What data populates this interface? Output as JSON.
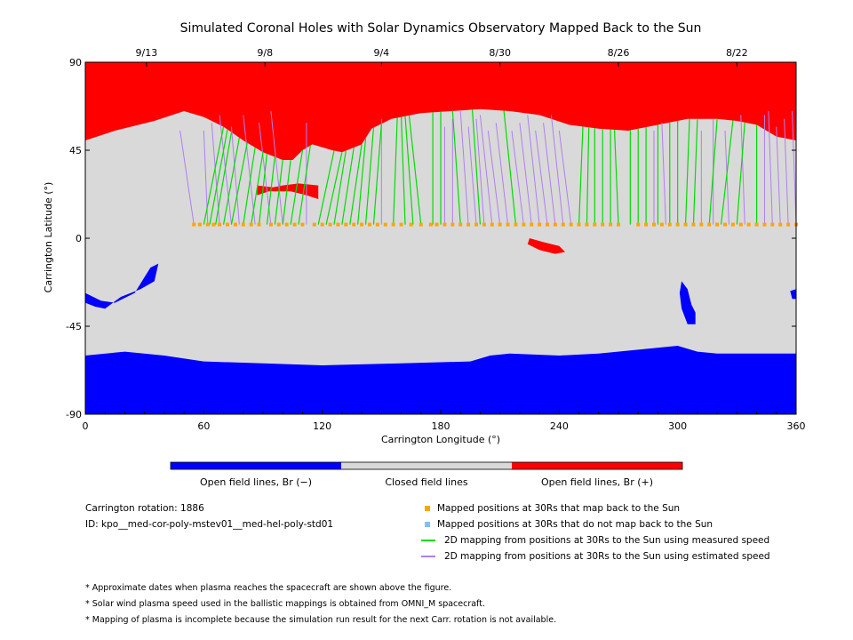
{
  "chart_data": {
    "type": "heatmap",
    "title": "Simulated Coronal Holes with Solar Dynamics Observatory Mapped Back to the Sun",
    "xlabel": "Carrington Longitude (°)",
    "ylabel": "Carrington Latitude (°)",
    "xlim": [
      0,
      360
    ],
    "ylim": [
      -90,
      90
    ],
    "x_ticks": [
      0,
      60,
      120,
      180,
      240,
      300,
      360
    ],
    "y_ticks": [
      90,
      45,
      0,
      -45,
      -90
    ],
    "top_axis_dates": [
      {
        "label": "9/13",
        "lon": 31
      },
      {
        "label": "9/8",
        "lon": 91
      },
      {
        "label": "9/4",
        "lon": 150
      },
      {
        "label": "8/30",
        "lon": 210
      },
      {
        "label": "8/26",
        "lon": 270
      },
      {
        "label": "8/22",
        "lon": 330
      }
    ],
    "colorbar": [
      {
        "label": "Open field lines, Br (−)",
        "color": "#0000ff"
      },
      {
        "label": "Closed field lines",
        "color": "#d9d9d9"
      },
      {
        "label": "Open field lines, Br (+)",
        "color": "#ff0000"
      }
    ],
    "north_boundary": [
      [
        0,
        50
      ],
      [
        15,
        55
      ],
      [
        35,
        60
      ],
      [
        50,
        65
      ],
      [
        60,
        62
      ],
      [
        70,
        57
      ],
      [
        80,
        50
      ],
      [
        90,
        44
      ],
      [
        100,
        40
      ],
      [
        105,
        40
      ],
      [
        110,
        45
      ],
      [
        115,
        48
      ],
      [
        125,
        45
      ],
      [
        130,
        44
      ],
      [
        140,
        48
      ],
      [
        145,
        56
      ],
      [
        155,
        61
      ],
      [
        170,
        64
      ],
      [
        200,
        66
      ],
      [
        215,
        65
      ],
      [
        230,
        63
      ],
      [
        245,
        58
      ],
      [
        260,
        56
      ],
      [
        275,
        55
      ],
      [
        290,
        58
      ],
      [
        305,
        61
      ],
      [
        320,
        61
      ],
      [
        330,
        60
      ],
      [
        340,
        58
      ],
      [
        350,
        52
      ],
      [
        360,
        50
      ]
    ],
    "south_boundary": [
      [
        0,
        -60
      ],
      [
        20,
        -58
      ],
      [
        40,
        -60
      ],
      [
        60,
        -63
      ],
      [
        90,
        -64
      ],
      [
        120,
        -65
      ],
      [
        160,
        -64
      ],
      [
        195,
        -63
      ],
      [
        205,
        -60
      ],
      [
        215,
        -59
      ],
      [
        240,
        -60
      ],
      [
        260,
        -59
      ],
      [
        280,
        -57
      ],
      [
        300,
        -55
      ],
      [
        310,
        -58
      ],
      [
        320,
        -59
      ],
      [
        360,
        -59
      ]
    ],
    "coronal_holes": [
      {
        "polarity": "positive",
        "outline": [
          [
            87,
            27
          ],
          [
            95,
            26
          ],
          [
            100,
            27
          ],
          [
            108,
            28
          ],
          [
            118,
            27
          ],
          [
            118,
            20
          ],
          [
            112,
            22
          ],
          [
            104,
            24
          ],
          [
            93,
            24
          ],
          [
            87,
            22
          ]
        ]
      },
      {
        "polarity": "positive",
        "outline": [
          [
            225,
            0
          ],
          [
            232,
            -2
          ],
          [
            240,
            -4
          ],
          [
            243,
            -7
          ],
          [
            238,
            -8
          ],
          [
            230,
            -6
          ],
          [
            224,
            -3
          ]
        ]
      },
      {
        "polarity": "negative",
        "outline": [
          [
            0,
            -28
          ],
          [
            8,
            -32
          ],
          [
            15,
            -33
          ],
          [
            25,
            -28
          ],
          [
            33,
            -15
          ],
          [
            37,
            -13
          ],
          [
            35,
            -22
          ],
          [
            28,
            -26
          ],
          [
            18,
            -30
          ],
          [
            10,
            -36
          ],
          [
            5,
            -35
          ],
          [
            0,
            -33
          ]
        ]
      },
      {
        "polarity": "negative",
        "outline": [
          [
            302,
            -22
          ],
          [
            305,
            -26
          ],
          [
            307,
            -34
          ],
          [
            309,
            -38
          ],
          [
            309,
            -44
          ],
          [
            305,
            -44
          ],
          [
            302,
            -36
          ],
          [
            301,
            -28
          ]
        ]
      },
      {
        "polarity": "negative",
        "outline": [
          [
            357,
            -27
          ],
          [
            360,
            -26
          ],
          [
            360,
            -31
          ],
          [
            358,
            -31
          ]
        ]
      }
    ],
    "mapped_positions_lat": 7,
    "mapped_positions_lon": [
      55,
      58,
      62,
      65,
      68,
      72,
      76,
      80,
      84,
      88,
      94,
      98,
      102,
      106,
      110,
      116,
      120,
      124,
      128,
      132,
      136,
      140,
      144,
      148,
      152,
      156,
      160,
      165,
      170,
      175,
      178,
      182,
      186,
      190,
      194,
      198,
      202,
      206,
      210,
      214,
      218,
      222,
      226,
      230,
      234,
      238,
      242,
      246,
      250,
      254,
      258,
      262,
      266,
      270,
      280,
      284,
      288,
      292,
      296,
      300,
      304,
      308,
      312,
      316,
      320,
      324,
      328,
      332,
      336,
      340,
      344,
      348,
      352,
      356,
      360
    ],
    "field_lines_measured": [
      [
        60,
        70
      ],
      [
        63,
        72
      ],
      [
        66,
        74
      ],
      [
        70,
        78
      ],
      [
        74,
        82
      ],
      [
        80,
        86
      ],
      [
        84,
        90
      ],
      [
        88,
        92
      ],
      [
        92,
        96
      ],
      [
        96,
        100
      ],
      [
        100,
        104
      ],
      [
        104,
        110
      ],
      [
        108,
        114
      ],
      [
        118,
        126
      ],
      [
        122,
        130
      ],
      [
        126,
        132
      ],
      [
        130,
        136
      ],
      [
        134,
        140
      ],
      [
        138,
        142
      ],
      [
        142,
        146
      ],
      [
        146,
        150
      ],
      [
        156,
        158
      ],
      [
        162,
        160
      ],
      [
        166,
        162
      ],
      [
        170,
        164
      ],
      [
        176,
        176
      ],
      [
        180,
        180
      ],
      [
        190,
        186
      ],
      [
        200,
        196
      ],
      [
        218,
        212
      ],
      [
        250,
        252
      ],
      [
        254,
        255
      ],
      [
        258,
        258
      ],
      [
        262,
        262
      ],
      [
        266,
        266
      ],
      [
        270,
        268
      ],
      [
        276,
        276
      ],
      [
        280,
        280
      ],
      [
        284,
        284
      ],
      [
        290,
        290
      ],
      [
        296,
        296
      ],
      [
        300,
        300
      ],
      [
        304,
        306
      ],
      [
        308,
        310
      ],
      [
        316,
        320
      ],
      [
        322,
        328
      ],
      [
        330,
        334
      ],
      [
        340,
        340
      ]
    ],
    "field_lines_estimated": [
      [
        55,
        48
      ],
      [
        62,
        60
      ],
      [
        68,
        64
      ],
      [
        74,
        68
      ],
      [
        78,
        74
      ],
      [
        86,
        80
      ],
      [
        94,
        88
      ],
      [
        100,
        94
      ],
      [
        112,
        112
      ],
      [
        150,
        150
      ],
      [
        182,
        182
      ],
      [
        186,
        186
      ],
      [
        194,
        190
      ],
      [
        198,
        194
      ],
      [
        202,
        198
      ],
      [
        206,
        200
      ],
      [
        210,
        204
      ],
      [
        214,
        208
      ],
      [
        222,
        216
      ],
      [
        226,
        220
      ],
      [
        230,
        224
      ],
      [
        234,
        228
      ],
      [
        238,
        232
      ],
      [
        242,
        236
      ],
      [
        246,
        240
      ],
      [
        288,
        288
      ],
      [
        294,
        292
      ],
      [
        312,
        312
      ],
      [
        318,
        318
      ],
      [
        326,
        324
      ],
      [
        334,
        332
      ],
      [
        344,
        344
      ],
      [
        348,
        346
      ],
      [
        352,
        350
      ],
      [
        356,
        354
      ],
      [
        360,
        358
      ]
    ],
    "legend": [
      {
        "kind": "square",
        "color": "#ffa500",
        "label": "Mapped positions at 30Rs that map back to the Sun"
      },
      {
        "kind": "square",
        "color": "#80bfff",
        "label": "Mapped positions at 30Rs that do not map back to the Sun"
      },
      {
        "kind": "line",
        "color": "#00dd00",
        "label": "2D mapping from positions at 30Rs to the Sun using measured speed"
      },
      {
        "kind": "line",
        "color": "#b07ff0",
        "label": "2D mapping from positions at 30Rs to the Sun using estimated speed"
      }
    ],
    "grid": false
  },
  "info": {
    "rotation": "Carrington rotation: 1886",
    "id": "ID: kpo__med-cor-poly-mstev01__med-hel-poly-std01"
  },
  "notes": [
    "* Approximate dates when plasma reaches the spacecraft are shown above the figure.",
    "* Solar wind plasma speed used in the ballistic mappings is obtained from OMNI_M spacecraft.",
    "* Mapping of plasma is incomplete because the simulation run result for the next Carr. rotation is not available."
  ]
}
